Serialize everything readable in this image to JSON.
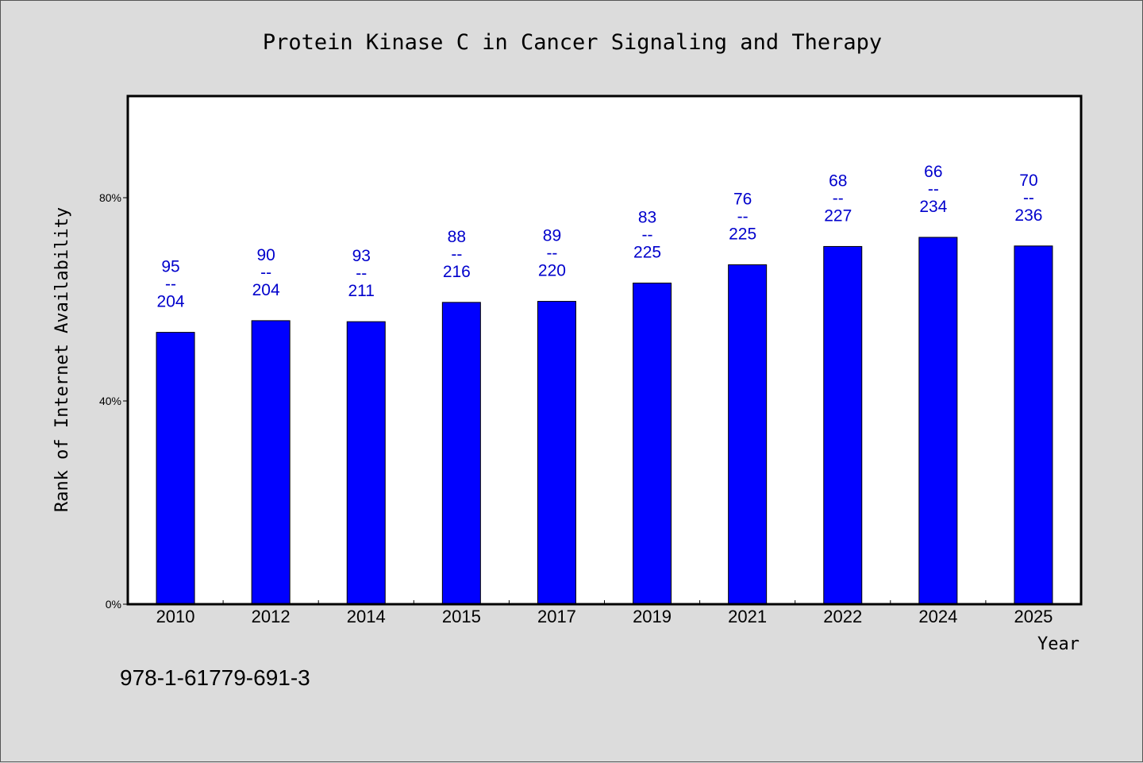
{
  "chart_data": {
    "type": "bar",
    "title": "Protein Kinase C in Cancer Signaling and Therapy",
    "xlabel": "Year",
    "ylabel": "Rank of Internet Availability",
    "categories": [
      "2010",
      "2012",
      "2014",
      "2015",
      "2017",
      "2019",
      "2021",
      "2022",
      "2024",
      "2025"
    ],
    "values": [
      53.5,
      55.8,
      55.6,
      59.4,
      59.6,
      63.2,
      66.8,
      70.4,
      72.2,
      70.5
    ],
    "ylim": [
      0,
      100
    ],
    "yticks": [
      0,
      40,
      80
    ],
    "ytick_labels": [
      "0%",
      "40%",
      "80%"
    ],
    "data_labels": [
      {
        "top": "95",
        "sep": "--",
        "bottom": "204"
      },
      {
        "top": "90",
        "sep": "--",
        "bottom": "204"
      },
      {
        "top": "93",
        "sep": "--",
        "bottom": "211"
      },
      {
        "top": "88",
        "sep": "--",
        "bottom": "216"
      },
      {
        "top": "89",
        "sep": "--",
        "bottom": "220"
      },
      {
        "top": "83",
        "sep": "--",
        "bottom": "225"
      },
      {
        "top": "76",
        "sep": "--",
        "bottom": "225"
      },
      {
        "top": "68",
        "sep": "--",
        "bottom": "227"
      },
      {
        "top": "66",
        "sep": "--",
        "bottom": "234"
      },
      {
        "top": "70",
        "sep": "--",
        "bottom": "236"
      }
    ],
    "grid": false,
    "bar_color": "#0000ff",
    "label_color": "#0000cc"
  },
  "footer": {
    "isbn": "978-1-61779-691-3"
  }
}
